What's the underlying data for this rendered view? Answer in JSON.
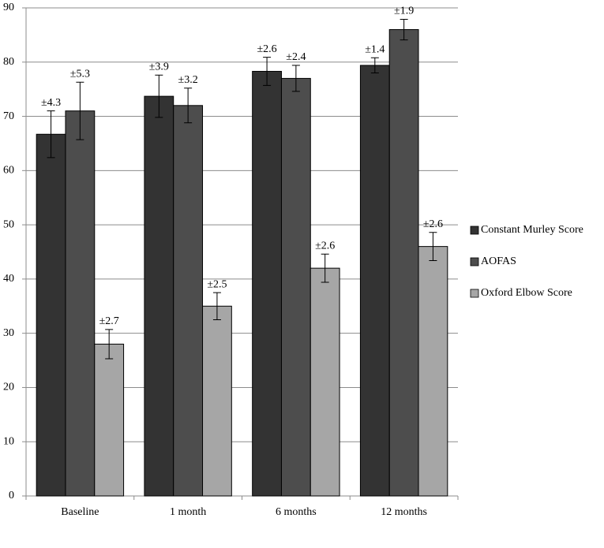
{
  "chart_data": {
    "type": "bar",
    "categories": [
      "Baseline",
      "1 month",
      "6 months",
      "12 months"
    ],
    "series": [
      {
        "name": "Constant Murley Score",
        "color": "#333333",
        "values": [
          66.7,
          73.7,
          78.3,
          79.4
        ],
        "errors": [
          4.3,
          3.9,
          2.6,
          1.4
        ],
        "error_labels": [
          "±4.3",
          "±3.9",
          "±2.6",
          "±1.4"
        ]
      },
      {
        "name": "AOFAS",
        "color": "#4d4d4d",
        "values": [
          71,
          72,
          77,
          86
        ],
        "errors": [
          5.3,
          3.2,
          2.4,
          1.9
        ],
        "error_labels": [
          "±5.3",
          "±3.2",
          "±2.4",
          "±1.9"
        ]
      },
      {
        "name": "Oxford Elbow Score",
        "color": "#a6a6a6",
        "values": [
          28,
          35,
          42,
          46
        ],
        "errors": [
          2.7,
          2.5,
          2.6,
          2.6
        ],
        "error_labels": [
          "±2.7",
          "±2.5",
          "±2.6",
          "±2.6"
        ]
      }
    ],
    "ylim": [
      0,
      90
    ],
    "yticks": [
      0,
      10,
      20,
      30,
      40,
      50,
      60,
      70,
      80,
      90
    ],
    "grid": true,
    "legend": "right"
  }
}
